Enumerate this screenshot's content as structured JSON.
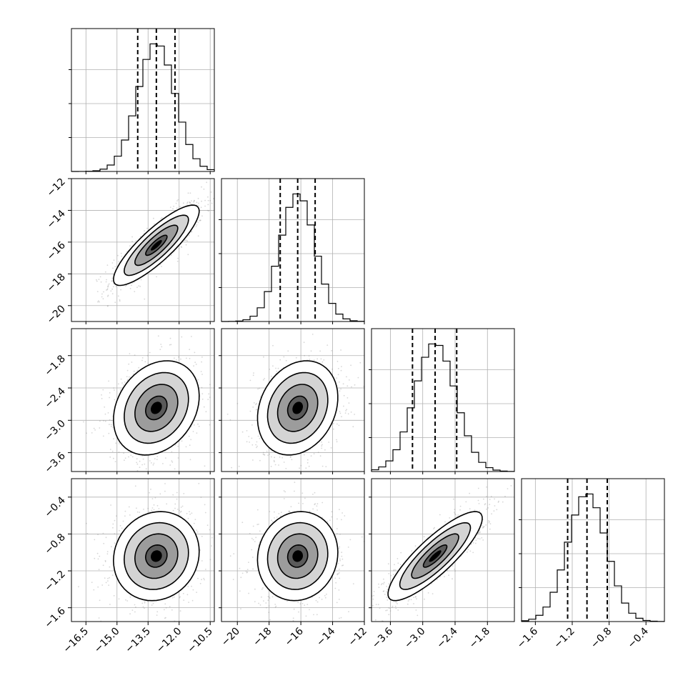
{
  "chart_data": {
    "type": "corner",
    "grid": true,
    "parameters": [
      {
        "range": [
          -17.2,
          -10.3
        ],
        "median": -13.1,
        "q16": -14.0,
        "q84": -12.2,
        "sigma": 0.9,
        "x_ticks": [
          "−16.5",
          "−15.0",
          "−13.5",
          "−12.0",
          "−10.5"
        ],
        "x_tick_values": [
          -16.5,
          -15.0,
          -13.5,
          -12.0,
          -10.5
        ],
        "y_ticks": [],
        "y_tick_values": []
      },
      {
        "range": [
          -21.0,
          -12.0
        ],
        "median": -16.2,
        "q16": -17.3,
        "q84": -15.1,
        "sigma": 1.1,
        "x_ticks": [
          "−20",
          "−18",
          "−16",
          "−14",
          "−12"
        ],
        "x_tick_values": [
          -20,
          -18,
          -16,
          -14,
          -12
        ],
        "y_ticks": [
          "−12",
          "−14",
          "−16",
          "−18",
          "−20"
        ],
        "y_tick_values": [
          -12,
          -14,
          -16,
          -18,
          -20
        ]
      },
      {
        "range": [
          -3.95,
          -1.3
        ],
        "median": -2.77,
        "q16": -3.19,
        "q84": -2.37,
        "sigma": 0.38,
        "x_ticks": [
          "−3.6",
          "−3.0",
          "−2.4",
          "−1.8"
        ],
        "x_tick_values": [
          -3.6,
          -3.0,
          -2.4,
          -1.8
        ],
        "y_ticks": [
          "−1.8",
          "−2.4",
          "−3.0",
          "−3.6"
        ],
        "y_tick_values": [
          -1.8,
          -2.4,
          -3.0,
          -3.6
        ]
      },
      {
        "range": [
          -1.75,
          -0.2
        ],
        "median": -1.04,
        "q16": -1.25,
        "q84": -0.82,
        "sigma": 0.21,
        "x_ticks": [
          "−1.6",
          "−1.2",
          "−0.8",
          "−0.4"
        ],
        "x_tick_values": [
          -1.6,
          -1.2,
          -0.8,
          -0.4
        ],
        "y_ticks": [
          "−0.4",
          "−0.8",
          "−1.2",
          "−1.6"
        ],
        "y_tick_values": [
          -0.4,
          -0.8,
          -1.2,
          -1.6
        ]
      }
    ],
    "correlations": [
      {
        "i": 1,
        "j": 0,
        "rho": 0.85
      },
      {
        "i": 2,
        "j": 0,
        "rho": 0.25
      },
      {
        "i": 2,
        "j": 1,
        "rho": 0.22
      },
      {
        "i": 3,
        "j": 0,
        "rho": 0.1
      },
      {
        "i": 3,
        "j": 1,
        "rho": 0.08
      },
      {
        "i": 3,
        "j": 2,
        "rho": 0.85
      }
    ],
    "contour_levels_sigma": [
      0.5,
      1.0,
      1.5,
      2.0
    ],
    "colors": {
      "ink": "#000000",
      "grid": "#b0b0b0",
      "scatter": "#8c8c8c"
    }
  }
}
